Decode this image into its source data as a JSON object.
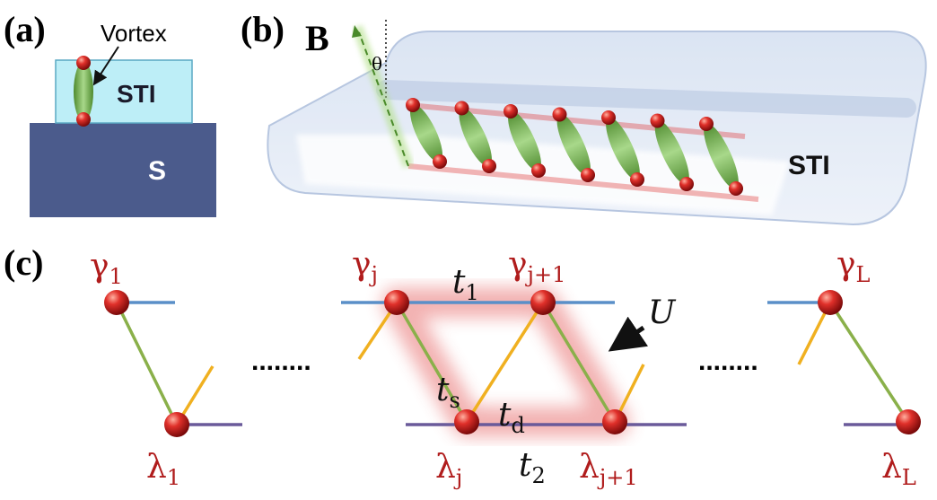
{
  "panel_a": {
    "label": "(a)",
    "vortex": "Vortex",
    "sti": "STI",
    "substrate": "S"
  },
  "panel_b": {
    "label": "(b)",
    "field": "B",
    "angle": "θ",
    "sti": "STI"
  },
  "panel_c": {
    "label": "(c)",
    "ellipsis": "........",
    "sites": [
      {
        "base": "γ",
        "sub": "1"
      },
      {
        "base": "λ",
        "sub": "1"
      },
      {
        "base": "γ",
        "sub": "j"
      },
      {
        "base": "γ",
        "sub": "j+1"
      },
      {
        "base": "λ",
        "sub": "j"
      },
      {
        "base": "λ",
        "sub": "j+1"
      },
      {
        "base": "γ",
        "sub": "L"
      },
      {
        "base": "λ",
        "sub": "L"
      }
    ],
    "couplings": [
      {
        "base": "t",
        "sub": "1"
      },
      {
        "base": "t",
        "sub": "s"
      },
      {
        "base": "t",
        "sub": "d"
      },
      {
        "base": "t",
        "sub": "2"
      },
      {
        "base": "U"
      }
    ]
  }
}
